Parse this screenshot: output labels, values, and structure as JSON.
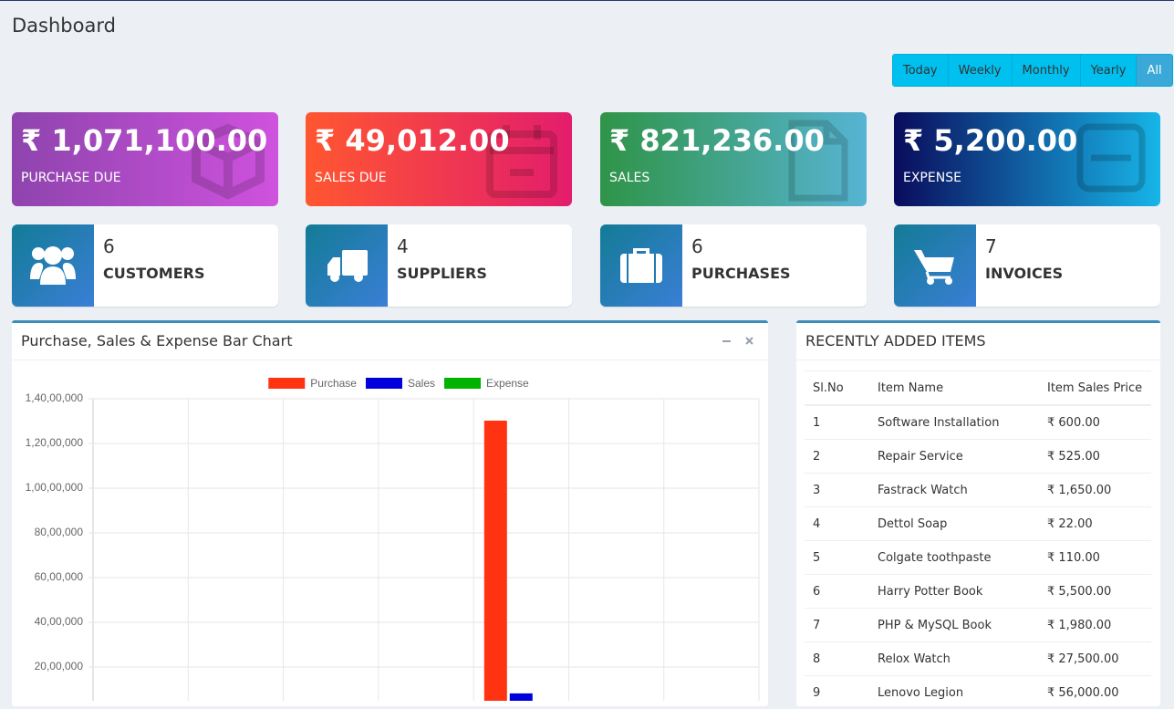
{
  "header": {
    "title": "Dashboard"
  },
  "filters": [
    "Today",
    "Weekly",
    "Monthly",
    "Yearly",
    "All"
  ],
  "summary_cards": [
    {
      "value": "₹ 1,071,100.00",
      "label": "PURCHASE DUE"
    },
    {
      "value": "₹ 49,012.00",
      "label": "SALES DUE"
    },
    {
      "value": "₹ 821,236.00",
      "label": "SALES"
    },
    {
      "value": "₹ 5,200.00",
      "label": "EXPENSE"
    }
  ],
  "count_cards": [
    {
      "value": 6,
      "label": "CUSTOMERS"
    },
    {
      "value": 4,
      "label": "SUPPLIERS"
    },
    {
      "value": 6,
      "label": "PURCHASES"
    },
    {
      "value": 7,
      "label": "INVOICES"
    }
  ],
  "chart_panel": {
    "title": "Purchase, Sales & Expense Bar Chart",
    "chart_data": {
      "type": "bar",
      "categories": [
        null,
        null,
        null,
        null,
        null,
        null,
        null
      ],
      "series": [
        {
          "name": "Purchase",
          "color": "#ff3311",
          "values": [
            0,
            0,
            0,
            0,
            13000000,
            0,
            0
          ]
        },
        {
          "name": "Sales",
          "color": "#0000dd",
          "values": [
            0,
            0,
            0,
            0,
            800000,
            0,
            0
          ]
        },
        {
          "name": "Expense",
          "color": "#00b300",
          "values": [
            0,
            0,
            0,
            0,
            0,
            0,
            0
          ]
        }
      ],
      "ylim": [
        0,
        14000000
      ],
      "yticks": [
        {
          "value": 2000000,
          "label": "20,00,000"
        },
        {
          "value": 4000000,
          "label": "40,00,000"
        },
        {
          "value": 6000000,
          "label": "60,00,000"
        },
        {
          "value": 8000000,
          "label": "80,00,000"
        },
        {
          "value": 10000000,
          "label": "1,00,00,000"
        },
        {
          "value": 12000000,
          "label": "1,20,00,000"
        },
        {
          "value": 14000000,
          "label": "1,40,00,000"
        }
      ],
      "grid": true
    }
  },
  "items_panel": {
    "title": "RECENTLY ADDED ITEMS",
    "table": {
      "columns": [
        "Sl.No",
        "Item Name",
        "Item Sales Price"
      ],
      "rows": [
        [
          "1",
          "Software Installation",
          "₹ 600.00"
        ],
        [
          "2",
          "Repair Service",
          "₹ 525.00"
        ],
        [
          "3",
          "Fastrack Watch",
          "₹ 1,650.00"
        ],
        [
          "4",
          "Dettol Soap",
          "₹ 22.00"
        ],
        [
          "5",
          "Colgate toothpaste",
          "₹ 110.00"
        ],
        [
          "6",
          "Harry Potter Book",
          "₹ 5,500.00"
        ],
        [
          "7",
          "PHP & MySQL Book",
          "₹ 1,980.00"
        ],
        [
          "8",
          "Relox Watch",
          "₹ 27,500.00"
        ],
        [
          "9",
          "Lenovo Legion",
          "₹ 56,000.00"
        ]
      ]
    }
  }
}
